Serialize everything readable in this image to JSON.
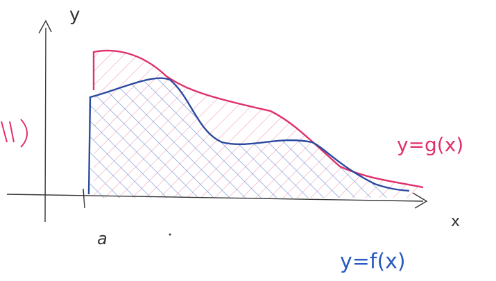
{
  "labels": {
    "y_axis": "y",
    "x_axis": "x",
    "point_a": "a",
    "g_curve": "y=g(x)",
    "f_curve": "y=f(x)"
  }
}
